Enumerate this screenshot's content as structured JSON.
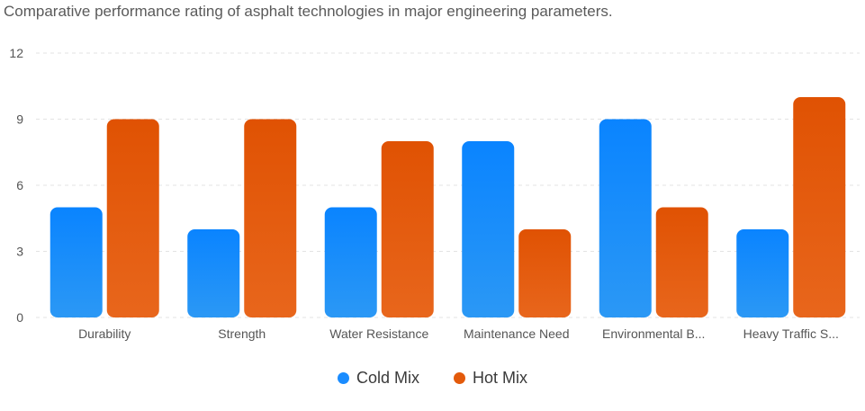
{
  "chart_data": {
    "type": "bar",
    "title": "Comparative performance rating of asphalt technologies in major engineering parameters.",
    "categories": [
      "Durability",
      "Strength",
      "Water Resistance",
      "Maintenance Need",
      "Environmental B...",
      "Heavy Traffic S..."
    ],
    "series": [
      {
        "name": "Cold Mix",
        "values": [
          5,
          4,
          5,
          8,
          9,
          4
        ],
        "color": "#1a8cff"
      },
      {
        "name": "Hot Mix",
        "values": [
          9,
          9,
          8,
          4,
          5,
          10
        ],
        "color": "#e35a0b"
      }
    ],
    "yticks": [
      0,
      3,
      6,
      9,
      12
    ],
    "ylim": [
      0,
      12
    ],
    "xlabel": "",
    "ylabel": "",
    "grid": true,
    "legend_position": "bottom-center"
  }
}
